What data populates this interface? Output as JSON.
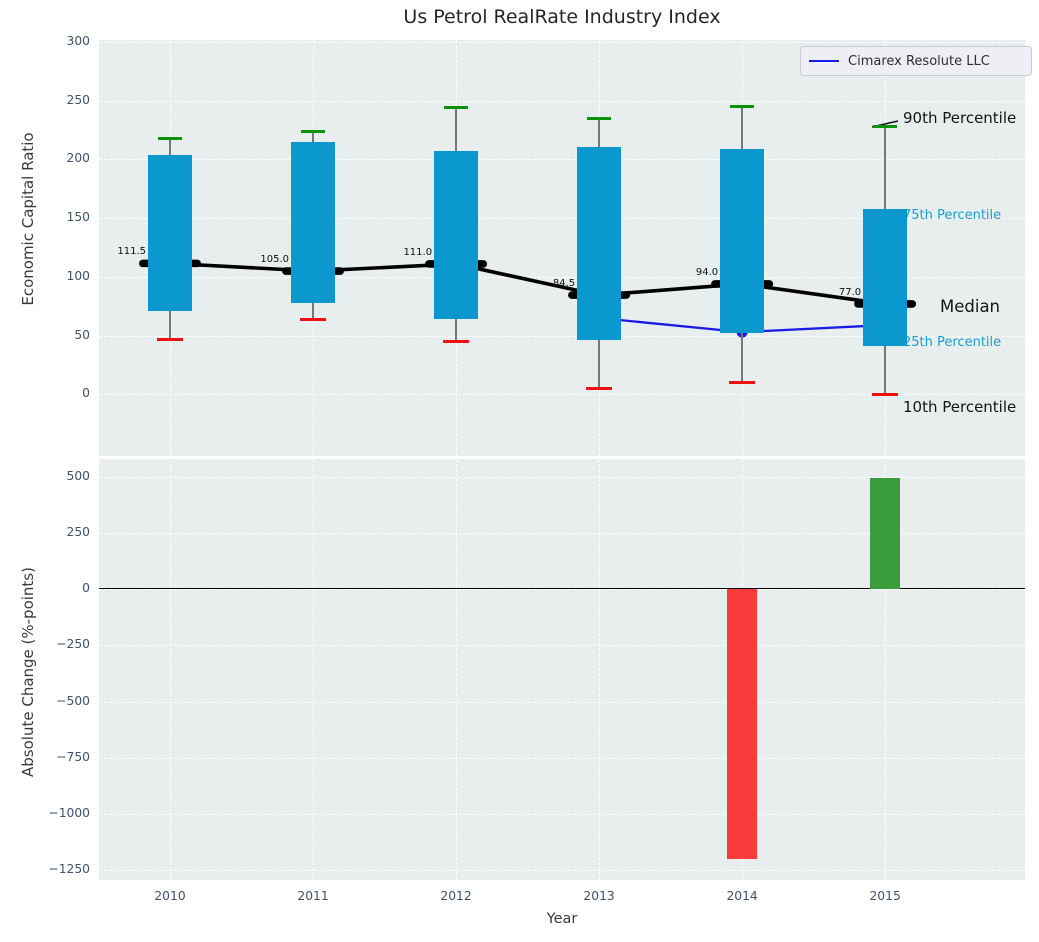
{
  "title": "Us Petrol RealRate Industry Index",
  "chart_data": [
    {
      "type": "box",
      "title": "Us Petrol RealRate Industry Index",
      "ylabel": "Economic Capital Ratio",
      "categories": [
        2010,
        2011,
        2012,
        2013,
        2014,
        2015
      ],
      "series": {
        "p90": [
          218,
          224,
          244,
          235,
          245,
          228
        ],
        "p75": [
          204,
          215,
          207,
          211,
          209,
          158
        ],
        "median": [
          111.5,
          105.0,
          111.0,
          84.5,
          94.0,
          77.0
        ],
        "p25": [
          71,
          78,
          64,
          46,
          52,
          41
        ],
        "p10": [
          47,
          64,
          45,
          5,
          10,
          0
        ]
      },
      "median_labels": [
        "111.5",
        "105.0",
        "111.0",
        "84.5",
        "94.0",
        "77.0"
      ],
      "company_line": {
        "name": "Cimarex Resolute LLC",
        "years": [
          2013,
          2014,
          2015
        ],
        "values": [
          65,
          53,
          59
        ]
      },
      "yticks": [
        300,
        250,
        200,
        150,
        100,
        50,
        0
      ],
      "ylim": [
        -52.5,
        301.7
      ],
      "grid": true,
      "legend_position": "upper right",
      "right_labels": [
        "90th Percentile",
        "75th Percentile",
        "Median",
        "25th Percentile",
        "10th Percentile"
      ]
    },
    {
      "type": "bar",
      "ylabel": "Absolute Change (%-points)",
      "xlabel": "Year",
      "categories": [
        2010,
        2011,
        2012,
        2013,
        2014,
        2015
      ],
      "values": [
        null,
        null,
        null,
        null,
        -1200,
        495
      ],
      "yticks": [
        500,
        250,
        0,
        -250,
        -500,
        -750,
        -1000,
        -1250
      ],
      "ylim": [
        -1294,
        580
      ],
      "grid": true
    }
  ],
  "colors": {
    "box_fill": "#0a98ce",
    "cap_top": "#089308",
    "cap_bottom": "#ee1111",
    "median_marker": "#000000",
    "median_line": "#000000",
    "company_line": "#1a1ae6",
    "bar_positive": "#3a9c3a",
    "bar_negative": "#f93b3b",
    "panel_background": "#e8edee",
    "grid": "#ffffff",
    "tick_text": "#3e536b",
    "cyan_label": "#18a0d2"
  }
}
